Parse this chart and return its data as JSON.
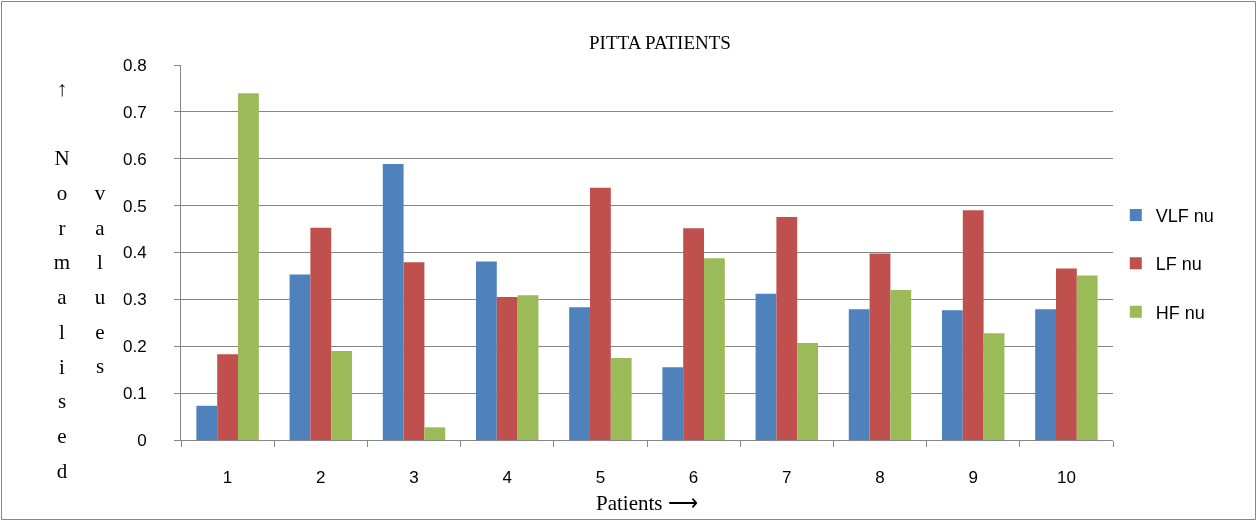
{
  "chart_data": {
    "type": "bar",
    "title": "PITTA PATIENTS",
    "xlabel": "Patients ⟶",
    "ylabel": "↑ Normalised values",
    "categories": [
      "1",
      "2",
      "3",
      "4",
      "5",
      "6",
      "7",
      "8",
      "9",
      "10"
    ],
    "series": [
      {
        "name": "VLF nu",
        "color": "#4f81bd",
        "values": [
          0.073,
          0.353,
          0.589,
          0.381,
          0.283,
          0.155,
          0.312,
          0.279,
          0.277,
          0.279
        ]
      },
      {
        "name": "LF nu",
        "color": "#c0504d",
        "values": [
          0.183,
          0.453,
          0.379,
          0.305,
          0.538,
          0.452,
          0.476,
          0.398,
          0.49,
          0.366
        ]
      },
      {
        "name": "HF nu",
        "color": "#9bbb59",
        "values": [
          0.74,
          0.19,
          0.027,
          0.309,
          0.175,
          0.388,
          0.207,
          0.32,
          0.228,
          0.351
        ]
      }
    ],
    "ylim": [
      0,
      0.8
    ],
    "yticks": [
      0,
      0.1,
      0.2,
      0.3,
      0.4,
      0.5,
      0.6,
      0.7,
      0.8
    ],
    "grid": "y",
    "legend": "right"
  }
}
